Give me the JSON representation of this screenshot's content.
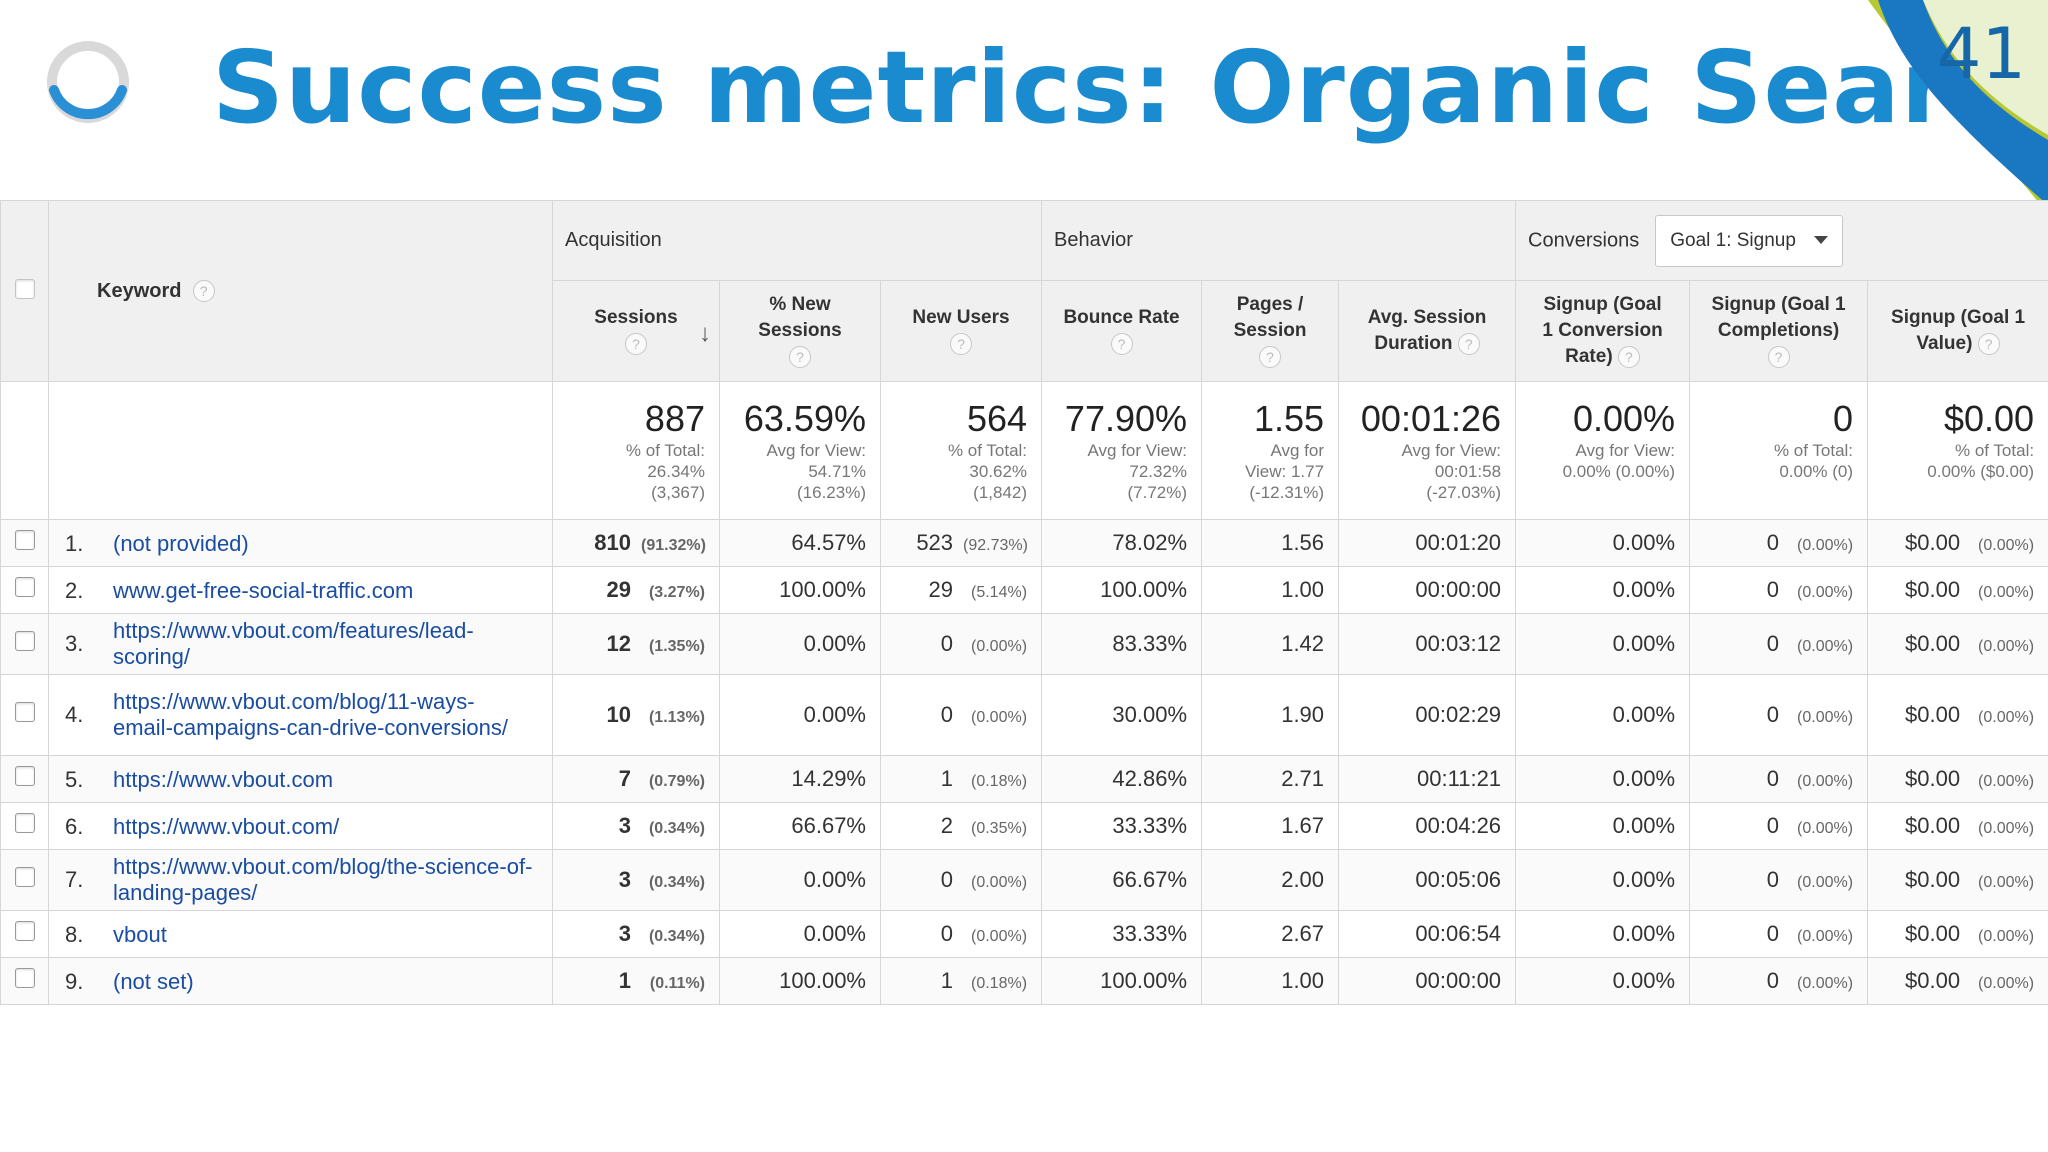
{
  "slide": {
    "title": "Success metrics: Organic Search",
    "page_number": "41",
    "icons": [
      "loading-ring-icon",
      "page-curl-decoration"
    ],
    "colors": {
      "title": "#1b8bd0",
      "page_number": "#1667a8",
      "curl_green": "#b8c832",
      "curl_blue": "#1a78c2"
    }
  },
  "report": {
    "keyword_header": "Keyword",
    "groups": {
      "acquisition": "Acquisition",
      "behavior": "Behavior",
      "conversions": "Conversions"
    },
    "goal_selector": "Goal 1: Signup",
    "columns": [
      {
        "line1": "Sessions",
        "line2": ""
      },
      {
        "line1": "% New",
        "line2": "Sessions"
      },
      {
        "line1": "New Users",
        "line2": ""
      },
      {
        "line1": "Bounce Rate",
        "line2": ""
      },
      {
        "line1": "Pages /",
        "line2": "Session"
      },
      {
        "line1": "Avg. Session",
        "line2": "Duration"
      },
      {
        "line1": "Signup (Goal",
        "line2": "1 Conversion",
        "line3": "Rate)"
      },
      {
        "line1": "Signup (Goal 1",
        "line2": "Completions)"
      },
      {
        "line1": "Signup (Goal 1",
        "line2": "Value)"
      }
    ],
    "totals": [
      {
        "value": "887",
        "sub": [
          "% of Total:",
          "26.34%",
          "(3,367)"
        ]
      },
      {
        "value": "63.59%",
        "sub": [
          "Avg for View:",
          "54.71%",
          "(16.23%)"
        ]
      },
      {
        "value": "564",
        "sub": [
          "% of Total:",
          "30.62%",
          "(1,842)"
        ]
      },
      {
        "value": "77.90%",
        "sub": [
          "Avg for View:",
          "72.32%",
          "(7.72%)"
        ]
      },
      {
        "value": "1.55",
        "sub": [
          "Avg for",
          "View: 1.77",
          "(-12.31%)"
        ]
      },
      {
        "value": "00:01:26",
        "sub": [
          "Avg for View:",
          "00:01:58",
          "(-27.03%)"
        ]
      },
      {
        "value": "0.00%",
        "sub": [
          "Avg for View:",
          "0.00% (0.00%)"
        ]
      },
      {
        "value": "0",
        "sub": [
          "% of Total:",
          "0.00% (0)"
        ]
      },
      {
        "value": "$0.00",
        "sub": [
          "% of Total:",
          "0.00% ($0.00)"
        ]
      }
    ],
    "rows": [
      {
        "idx": "1.",
        "keyword": "(not provided)",
        "sessions": "810",
        "sessions_pct": "(91.32%)",
        "new_sessions": "64.57%",
        "new_users": "523",
        "new_users_pct": "(92.73%)",
        "bounce": "78.02%",
        "pages": "1.56",
        "duration": "00:01:20",
        "conv_rate": "0.00%",
        "completions": "0",
        "completions_pct": "(0.00%)",
        "value": "$0.00",
        "value_pct": "(0.00%)"
      },
      {
        "idx": "2.",
        "keyword": "www.get-free-social-traffic.com",
        "sessions": "29",
        "sessions_pct": "(3.27%)",
        "new_sessions": "100.00%",
        "new_users": "29",
        "new_users_pct": "(5.14%)",
        "bounce": "100.00%",
        "pages": "1.00",
        "duration": "00:00:00",
        "conv_rate": "0.00%",
        "completions": "0",
        "completions_pct": "(0.00%)",
        "value": "$0.00",
        "value_pct": "(0.00%)"
      },
      {
        "idx": "3.",
        "keyword": "https://www.vbout.com/features/lead-scoring/",
        "sessions": "12",
        "sessions_pct": "(1.35%)",
        "new_sessions": "0.00%",
        "new_users": "0",
        "new_users_pct": "(0.00%)",
        "bounce": "83.33%",
        "pages": "1.42",
        "duration": "00:03:12",
        "conv_rate": "0.00%",
        "completions": "0",
        "completions_pct": "(0.00%)",
        "value": "$0.00",
        "value_pct": "(0.00%)"
      },
      {
        "idx": "4.",
        "keyword": "https://www.vbout.com/blog/11-ways-email-campaigns-can-drive-conversions/",
        "sessions": "10",
        "sessions_pct": "(1.13%)",
        "new_sessions": "0.00%",
        "new_users": "0",
        "new_users_pct": "(0.00%)",
        "bounce": "30.00%",
        "pages": "1.90",
        "duration": "00:02:29",
        "conv_rate": "0.00%",
        "completions": "0",
        "completions_pct": "(0.00%)",
        "value": "$0.00",
        "value_pct": "(0.00%)"
      },
      {
        "idx": "5.",
        "keyword": "https://www.vbout.com",
        "sessions": "7",
        "sessions_pct": "(0.79%)",
        "new_sessions": "14.29%",
        "new_users": "1",
        "new_users_pct": "(0.18%)",
        "bounce": "42.86%",
        "pages": "2.71",
        "duration": "00:11:21",
        "conv_rate": "0.00%",
        "completions": "0",
        "completions_pct": "(0.00%)",
        "value": "$0.00",
        "value_pct": "(0.00%)"
      },
      {
        "idx": "6.",
        "keyword": "https://www.vbout.com/",
        "sessions": "3",
        "sessions_pct": "(0.34%)",
        "new_sessions": "66.67%",
        "new_users": "2",
        "new_users_pct": "(0.35%)",
        "bounce": "33.33%",
        "pages": "1.67",
        "duration": "00:04:26",
        "conv_rate": "0.00%",
        "completions": "0",
        "completions_pct": "(0.00%)",
        "value": "$0.00",
        "value_pct": "(0.00%)"
      },
      {
        "idx": "7.",
        "keyword": "https://www.vbout.com/blog/the-science-of-landing-pages/",
        "sessions": "3",
        "sessions_pct": "(0.34%)",
        "new_sessions": "0.00%",
        "new_users": "0",
        "new_users_pct": "(0.00%)",
        "bounce": "66.67%",
        "pages": "2.00",
        "duration": "00:05:06",
        "conv_rate": "0.00%",
        "completions": "0",
        "completions_pct": "(0.00%)",
        "value": "$0.00",
        "value_pct": "(0.00%)"
      },
      {
        "idx": "8.",
        "keyword": "vbout",
        "sessions": "3",
        "sessions_pct": "(0.34%)",
        "new_sessions": "0.00%",
        "new_users": "0",
        "new_users_pct": "(0.00%)",
        "bounce": "33.33%",
        "pages": "2.67",
        "duration": "00:06:54",
        "conv_rate": "0.00%",
        "completions": "0",
        "completions_pct": "(0.00%)",
        "value": "$0.00",
        "value_pct": "(0.00%)"
      },
      {
        "idx": "9.",
        "keyword": "(not set)",
        "sessions": "1",
        "sessions_pct": "(0.11%)",
        "new_sessions": "100.00%",
        "new_users": "1",
        "new_users_pct": "(0.18%)",
        "bounce": "100.00%",
        "pages": "1.00",
        "duration": "00:00:00",
        "conv_rate": "0.00%",
        "completions": "0",
        "completions_pct": "(0.00%)",
        "value": "$0.00",
        "value_pct": "(0.00%)"
      }
    ]
  }
}
